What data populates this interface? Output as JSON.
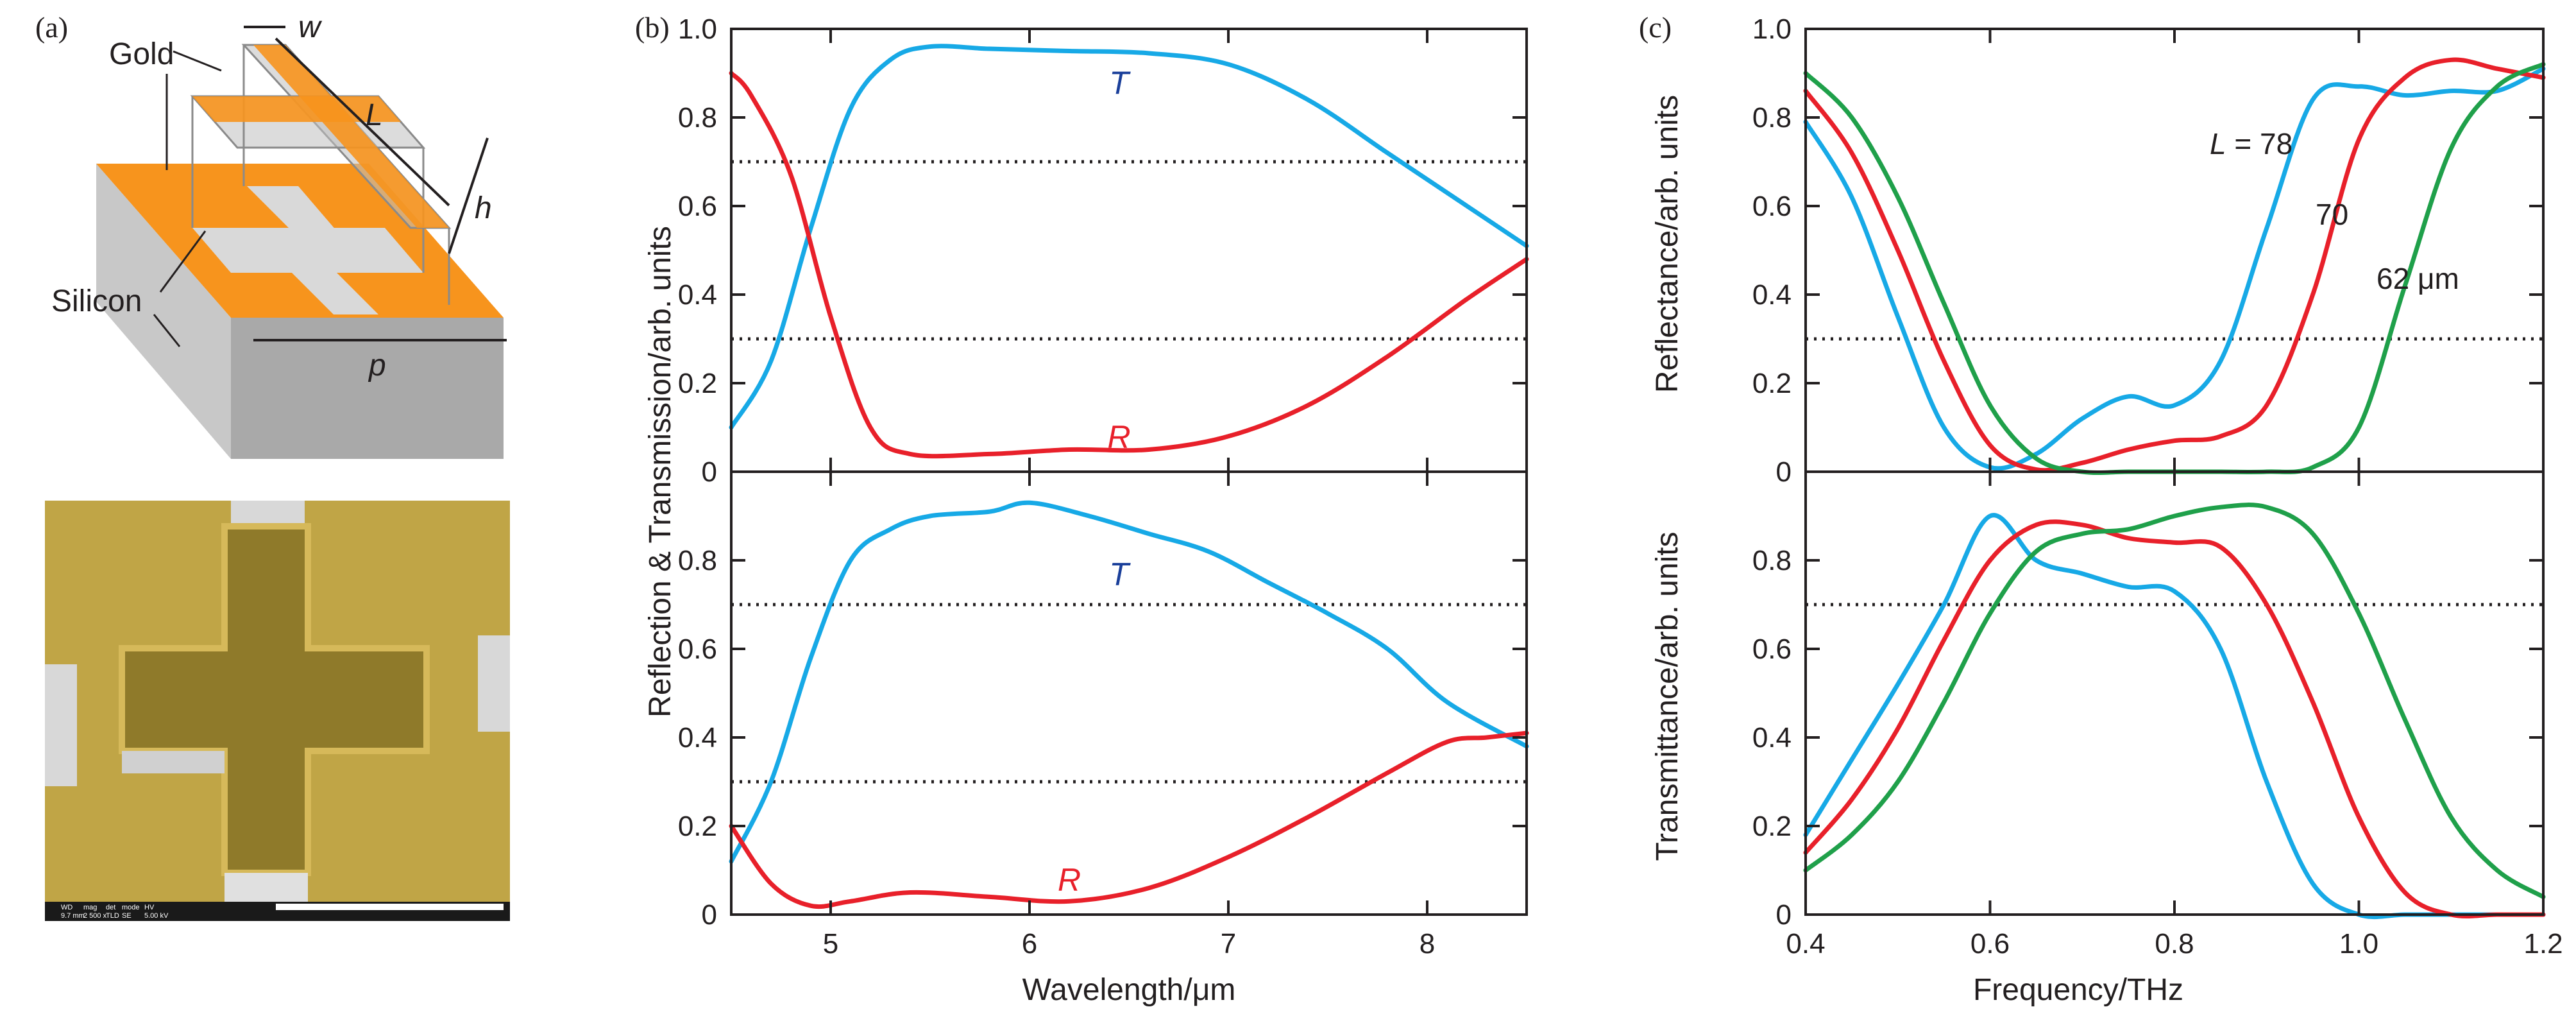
{
  "colors": {
    "blue": "#17a9e6",
    "red": "#e8202a",
    "green": "#1fa04a",
    "label_blue": "#1a3f9a",
    "label_red": "#e8202a",
    "gold": "#f7941d",
    "silicon_top": "#dcdcdc",
    "silicon_side": "#a9a9a9",
    "sem_gold": "#b39a3a"
  },
  "panel_a": {
    "label": "(a)",
    "schematic": {
      "labels": {
        "gold": "Gold",
        "silicon": "Silicon",
        "w": "w",
        "L": "L",
        "h": "h",
        "p": "p"
      }
    },
    "sem": {
      "databar": [
        "WD",
        "mag",
        "det",
        "mode",
        "HV",
        "9.7 mm",
        "2 500 x",
        "TLD",
        "SE",
        "5.00 kV"
      ]
    }
  },
  "chart_data": [
    {
      "id": "b_top",
      "panel": "(b)",
      "type": "line",
      "xlim": [
        4.5,
        8.5
      ],
      "ylim": [
        0,
        1.0
      ],
      "yticks": [
        "0",
        "0.2",
        "0.4",
        "0.6",
        "0.8",
        "1.0"
      ],
      "ylabel": "Reflection & Transmission/arb. units",
      "reference_lines": [
        0.7,
        0.3
      ],
      "series": [
        {
          "name": "T",
          "color": "blue",
          "label_pos": [
            6.45,
            0.88
          ],
          "x": [
            4.5,
            4.7,
            4.9,
            5.1,
            5.3,
            5.5,
            5.8,
            6.2,
            6.6,
            7.0,
            7.4,
            7.8,
            8.2,
            8.5
          ],
          "y": [
            0.1,
            0.25,
            0.55,
            0.82,
            0.93,
            0.96,
            0.955,
            0.95,
            0.945,
            0.92,
            0.84,
            0.72,
            0.6,
            0.51
          ]
        },
        {
          "name": "R",
          "color": "red",
          "label_pos": [
            6.45,
            0.08
          ],
          "x": [
            4.5,
            4.6,
            4.8,
            5.0,
            5.2,
            5.4,
            5.8,
            6.2,
            6.6,
            7.0,
            7.4,
            7.8,
            8.2,
            8.5
          ],
          "y": [
            0.9,
            0.85,
            0.67,
            0.35,
            0.1,
            0.04,
            0.04,
            0.05,
            0.05,
            0.08,
            0.15,
            0.26,
            0.39,
            0.48
          ]
        }
      ]
    },
    {
      "id": "b_bottom",
      "panel": "(b)",
      "type": "line",
      "xlim": [
        4.5,
        8.5
      ],
      "ylim": [
        0,
        1.0
      ],
      "yticks": [
        "0",
        "0.2",
        "0.4",
        "0.6",
        "0.8"
      ],
      "xticks": [
        "5",
        "6",
        "7",
        "8"
      ],
      "xlabel": "Wavelength/μm",
      "reference_lines": [
        0.7,
        0.3
      ],
      "series": [
        {
          "name": "T",
          "color": "blue",
          "label_pos": [
            6.45,
            0.77
          ],
          "x": [
            4.5,
            4.7,
            4.9,
            5.1,
            5.3,
            5.5,
            5.8,
            6.0,
            6.3,
            6.6,
            6.9,
            7.2,
            7.5,
            7.8,
            8.1,
            8.5
          ],
          "y": [
            0.12,
            0.3,
            0.58,
            0.8,
            0.87,
            0.9,
            0.91,
            0.93,
            0.9,
            0.86,
            0.82,
            0.75,
            0.68,
            0.6,
            0.48,
            0.38
          ]
        },
        {
          "name": "R",
          "color": "red",
          "label_pos": [
            6.2,
            0.08
          ],
          "x": [
            4.5,
            4.7,
            4.9,
            5.1,
            5.4,
            5.8,
            6.2,
            6.6,
            7.0,
            7.4,
            7.8,
            8.1,
            8.3,
            8.5
          ],
          "y": [
            0.2,
            0.07,
            0.02,
            0.03,
            0.05,
            0.04,
            0.03,
            0.06,
            0.13,
            0.22,
            0.32,
            0.39,
            0.4,
            0.41
          ]
        }
      ]
    },
    {
      "id": "c_top",
      "panel": "(c)",
      "type": "line",
      "xlim": [
        0.4,
        1.2
      ],
      "ylim": [
        0,
        1.0
      ],
      "yticks": [
        "0",
        "0.2",
        "0.4",
        "0.6",
        "0.8",
        "1.0"
      ],
      "ylabel": "Reflectance/arb. units",
      "reference_lines": [
        0.3
      ],
      "annotations": [
        "L = 78",
        "70",
        "62 μm"
      ],
      "series": [
        {
          "name": "L = 78",
          "color": "blue",
          "x": [
            0.4,
            0.45,
            0.5,
            0.55,
            0.6,
            0.65,
            0.7,
            0.75,
            0.8,
            0.85,
            0.9,
            0.95,
            1.0,
            1.05,
            1.1,
            1.15,
            1.2
          ],
          "y": [
            0.79,
            0.62,
            0.35,
            0.1,
            0.01,
            0.04,
            0.12,
            0.17,
            0.15,
            0.25,
            0.55,
            0.84,
            0.87,
            0.85,
            0.86,
            0.86,
            0.91
          ]
        },
        {
          "name": "70",
          "color": "red",
          "x": [
            0.4,
            0.45,
            0.5,
            0.55,
            0.6,
            0.65,
            0.7,
            0.75,
            0.8,
            0.85,
            0.9,
            0.95,
            1.0,
            1.05,
            1.1,
            1.15,
            1.2
          ],
          "y": [
            0.86,
            0.72,
            0.5,
            0.25,
            0.06,
            0.005,
            0.02,
            0.05,
            0.07,
            0.08,
            0.15,
            0.4,
            0.75,
            0.89,
            0.93,
            0.91,
            0.89
          ]
        },
        {
          "name": "62 μm",
          "color": "green",
          "x": [
            0.4,
            0.45,
            0.5,
            0.55,
            0.6,
            0.65,
            0.7,
            0.75,
            0.8,
            0.85,
            0.9,
            0.95,
            1.0,
            1.05,
            1.1,
            1.15,
            1.2
          ],
          "y": [
            0.9,
            0.8,
            0.62,
            0.38,
            0.15,
            0.03,
            0.0,
            0.0,
            0.0,
            0.0,
            0.0,
            0.01,
            0.1,
            0.42,
            0.73,
            0.87,
            0.92
          ]
        }
      ]
    },
    {
      "id": "c_bottom",
      "panel": "(c)",
      "type": "line",
      "xlim": [
        0.4,
        1.2
      ],
      "ylim": [
        0,
        1.0
      ],
      "yticks": [
        "0",
        "0.2",
        "0.4",
        "0.6",
        "0.8"
      ],
      "xticks": [
        "0.4",
        "0.6",
        "0.8",
        "1.0",
        "1.2"
      ],
      "xlabel": "Frequency/THz",
      "ylabel": "Transmittance/arb. units",
      "reference_lines": [
        0.7
      ],
      "series": [
        {
          "name": "L = 78",
          "color": "blue",
          "x": [
            0.4,
            0.45,
            0.5,
            0.55,
            0.6,
            0.65,
            0.7,
            0.75,
            0.8,
            0.85,
            0.9,
            0.95,
            1.0,
            1.05,
            1.1,
            1.15,
            1.2
          ],
          "y": [
            0.18,
            0.35,
            0.52,
            0.7,
            0.9,
            0.8,
            0.77,
            0.74,
            0.73,
            0.6,
            0.3,
            0.07,
            0.0,
            0.0,
            0.0,
            0.0,
            0.0
          ]
        },
        {
          "name": "70",
          "color": "red",
          "x": [
            0.4,
            0.45,
            0.5,
            0.55,
            0.6,
            0.65,
            0.7,
            0.75,
            0.8,
            0.85,
            0.9,
            0.95,
            1.0,
            1.05,
            1.1,
            1.15,
            1.2
          ],
          "y": [
            0.14,
            0.26,
            0.42,
            0.62,
            0.8,
            0.88,
            0.88,
            0.85,
            0.84,
            0.83,
            0.7,
            0.48,
            0.22,
            0.05,
            0.0,
            0.0,
            0.0
          ]
        },
        {
          "name": "62 μm",
          "color": "green",
          "x": [
            0.4,
            0.45,
            0.5,
            0.55,
            0.6,
            0.65,
            0.7,
            0.75,
            0.8,
            0.85,
            0.9,
            0.95,
            1.0,
            1.05,
            1.1,
            1.15,
            1.2
          ],
          "y": [
            0.1,
            0.18,
            0.3,
            0.48,
            0.68,
            0.82,
            0.86,
            0.87,
            0.9,
            0.92,
            0.92,
            0.86,
            0.68,
            0.44,
            0.22,
            0.1,
            0.04
          ]
        }
      ]
    }
  ]
}
